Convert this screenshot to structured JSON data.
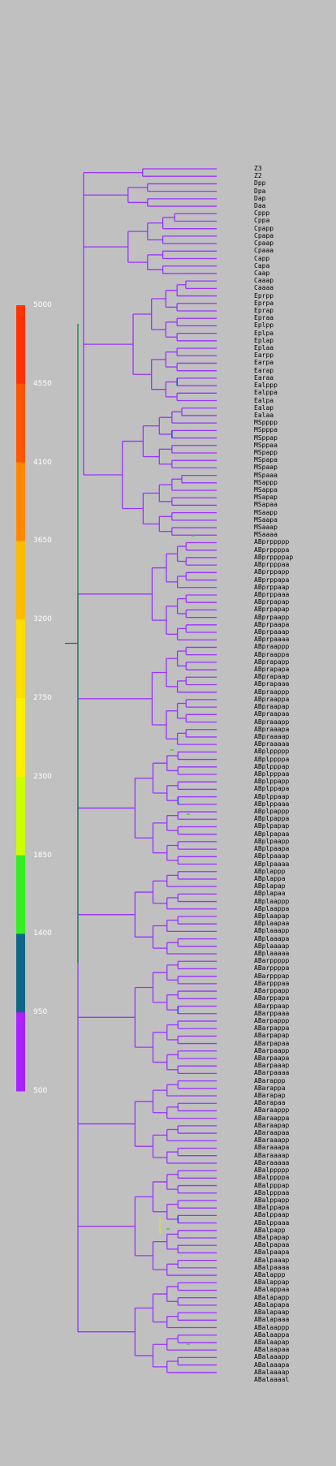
{
  "legend": {
    "ticks": [
      "5000",
      "4550",
      "4100",
      "3650",
      "3200",
      "2750",
      "2300",
      "1850",
      "1400",
      "950",
      "500"
    ],
    "colors": [
      "#ff3300",
      "#ff5500",
      "#ff8800",
      "#ffbb00",
      "#ffdd00",
      "#ffee00",
      "#ccff00",
      "#33ee22",
      "#116688",
      "#aa22ff"
    ]
  },
  "tree_colors": {
    "branch": "#9933ff",
    "root": "#008844",
    "highlight": "#0033ff",
    "accent": "#33cc33",
    "yellow": "#dddd33"
  },
  "leaves": [
    "Z3",
    "Z2",
    "Dpp",
    "Dpa",
    "Dap",
    "Daa",
    "Cppp",
    "Cppa",
    "Cpapp",
    "Cpapa",
    "Cpaap",
    "Cpaaa",
    "Capp",
    "Capa",
    "Caap",
    "Caaap",
    "Caaaa",
    "Eprpp",
    "Eprpa",
    "Eprap",
    "Epraa",
    "Eplpp",
    "Eplpa",
    "Eplap",
    "Eplaa",
    "Earpp",
    "Earpa",
    "Earap",
    "Earaa",
    "Ealppp",
    "Ealppa",
    "Ealpa",
    "Ealap",
    "Ealaa",
    "MSpppp",
    "MSpppa",
    "MSppap",
    "MSppaa",
    "MSpapp",
    "MSpapa",
    "MSpaap",
    "MSpaaa",
    "MSappp",
    "MSappa",
    "MSapap",
    "MSapaa",
    "MSaapp",
    "MSaapa",
    "MSaaap",
    "MSaaaa",
    "ABprppppp",
    "ABprppppa",
    "ABprppppap",
    "ABprpppaa",
    "ABprppapp",
    "ABprppapa",
    "ABprppaap",
    "ABprppaaa",
    "ABprpapap",
    "ABprpapap",
    "ABprpaapp",
    "ABprpaapa",
    "ABprpaaap",
    "ABprpaaaa",
    "ABpraappp",
    "ABpraappa",
    "ABprapapp",
    "ABprapapa",
    "ABprapaap",
    "ABprapaaa",
    "ABpraappp",
    "ABpraappa",
    "ABpraapap",
    "ABpraapaa",
    "ABpraaapp",
    "ABpraaapa",
    "ABpraaaap",
    "ABpraaaaa",
    "ABplppppp",
    "ABplppppa",
    "ABplpppap",
    "ABplpppaa",
    "ABplppapp",
    "ABplppapa",
    "ABplppaap",
    "ABplppaaa",
    "ABplpappp",
    "ABplpappa",
    "ABplpapap",
    "ABplpapaa",
    "ABplpaapp",
    "ABplpaapa",
    "ABplpaaap",
    "ABplpaaaa",
    "ABplappp",
    "ABplappa",
    "ABplapap",
    "ABplapaa",
    "ABplaappp",
    "ABplaappa",
    "ABplaapap",
    "ABplaapaa",
    "ABplaaapp",
    "ABplaaapa",
    "ABplaaaap",
    "ABplaaaaa",
    "ABarppppp",
    "ABarppppa",
    "ABarpppap",
    "ABarpppaa",
    "ABarppapp",
    "ABarppapa",
    "ABarppaap",
    "ABarppaaa",
    "ABarpappp",
    "ABarpappa",
    "ABarpapap",
    "ABarpapaa",
    "ABarpaapp",
    "ABarpaapa",
    "ABarpaaap",
    "ABarpaaaa",
    "ABarappp",
    "ABarappa",
    "ABarapap",
    "ABarapaa",
    "ABaraappp",
    "ABaraappa",
    "ABaraapap",
    "ABaraapaa",
    "ABaraaapp",
    "ABaraaapa",
    "ABaraaaap",
    "ABaraaaaa",
    "ABalppppp",
    "ABalppppa",
    "ABalpppap",
    "ABalpppaa",
    "ABalppapp",
    "ABalppapa",
    "ABalppaap",
    "ABalppaaa",
    "ABalpapp",
    "ABalpapap",
    "ABalpapaa",
    "ABalpaapa",
    "ABalpaaap",
    "ABalpaaaa",
    "ABalappp",
    "ABalappap",
    "ABalappaa",
    "ABalapapp",
    "ABalapapa",
    "ABalapaap",
    "ABalapaaa",
    "ABalaappp",
    "ABalaappa",
    "ABalaapap",
    "ABalaapaa",
    "ABalaaapp",
    "ABalaaapa",
    "ABalaaaap",
    "ABalaaaal"
  ]
}
